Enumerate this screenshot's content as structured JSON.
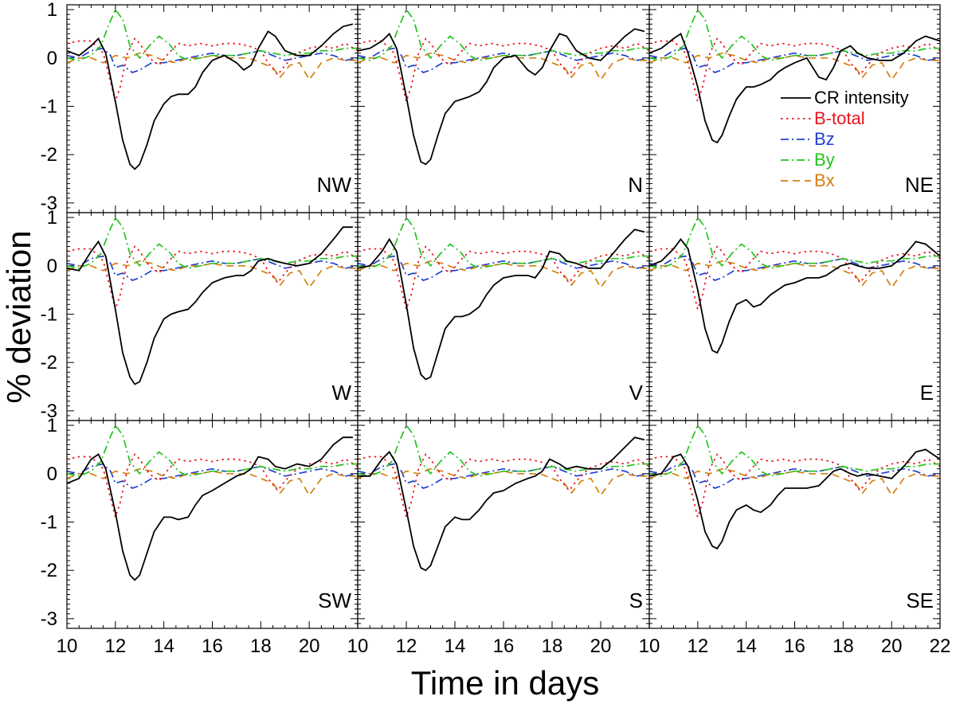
{
  "chart_data": {
    "type": "line",
    "layout": "3x3 grid of panels with shared axes",
    "xlabel": "Time in days",
    "ylabel": "% deviation",
    "xlim": [
      10,
      22
    ],
    "ylim": [
      -3.2,
      1.1
    ],
    "xticks": [
      10,
      12,
      14,
      16,
      18,
      20,
      22
    ],
    "xtick_labels": [
      "10",
      "12",
      "14",
      "16",
      "18",
      "20",
      "22"
    ],
    "xtick_labels_edge_panels": [
      "10",
      "12",
      "14",
      "16",
      "18",
      "20"
    ],
    "yticks": [
      -3,
      -2,
      -1,
      0,
      1
    ],
    "grid": false,
    "legend_panel": "NE",
    "legend_position": "top-right",
    "legend": [
      {
        "key": "cr",
        "label": "CR intensity",
        "color": "#000000",
        "dash": "solid"
      },
      {
        "key": "bt",
        "label": "B-total",
        "color": "#e8141c",
        "dash": "dotted"
      },
      {
        "key": "bz",
        "label": "Bz",
        "color": "#1f3fd0",
        "dash": "dash-dot"
      },
      {
        "key": "by",
        "label": "By",
        "color": "#22c41c",
        "dash": "dash-dot"
      },
      {
        "key": "bx",
        "label": "Bx",
        "color": "#d47f10",
        "dash": "dashed"
      }
    ],
    "shared_series": {
      "bt": {
        "x": [
          10,
          10.5,
          11,
          11.5,
          11.8,
          12,
          12.2,
          12.5,
          12.8,
          13,
          13.4,
          13.8,
          14.2,
          14.6,
          15,
          15.5,
          16,
          16.5,
          17,
          17.5,
          18,
          18.3,
          18.7,
          19,
          19.5,
          20,
          20.5,
          21,
          21.5,
          22
        ],
        "y": [
          0.3,
          0.35,
          0.35,
          0.1,
          -0.5,
          -0.9,
          -0.6,
          0.1,
          0.4,
          0.3,
          0.0,
          -0.15,
          0.1,
          0.3,
          0.25,
          0.3,
          0.25,
          0.3,
          0.3,
          0.25,
          0.15,
          -0.1,
          -0.35,
          -0.15,
          0.1,
          0.2,
          0.25,
          0.2,
          0.3,
          0.15
        ]
      },
      "bz": {
        "x": [
          10,
          10.5,
          11,
          11.5,
          11.8,
          12,
          12.3,
          12.7,
          13,
          13.5,
          14,
          14.5,
          15,
          15.5,
          16,
          16.5,
          17,
          17.5,
          18,
          18.5,
          19,
          19.5,
          20,
          20.5,
          21,
          21.5,
          22
        ],
        "y": [
          0.05,
          0.0,
          0.15,
          0.2,
          0.05,
          -0.2,
          -0.15,
          -0.3,
          -0.25,
          -0.1,
          -0.1,
          -0.05,
          0.0,
          0.05,
          0.1,
          0.05,
          0.05,
          0.1,
          0.15,
          0.05,
          -0.05,
          0.0,
          0.05,
          0.1,
          0.05,
          -0.05,
          0.0
        ]
      },
      "by": {
        "x": [
          10,
          10.5,
          11,
          11.4,
          11.7,
          12,
          12.3,
          12.6,
          13,
          13.4,
          13.8,
          14.2,
          14.6,
          15,
          15.5,
          16,
          16.5,
          17,
          17.5,
          18,
          18.5,
          19,
          19.5,
          20,
          20.5,
          21,
          21.5,
          22
        ],
        "y": [
          0.0,
          -0.05,
          0.05,
          0.25,
          0.65,
          1.0,
          0.8,
          0.25,
          0.0,
          0.25,
          0.45,
          0.3,
          0.05,
          -0.05,
          0.0,
          0.05,
          0.05,
          0.05,
          0.1,
          0.15,
          0.1,
          0.05,
          0.1,
          0.1,
          0.15,
          0.15,
          0.2,
          0.2
        ]
      },
      "bx": {
        "x": [
          10,
          10.5,
          11,
          11.5,
          12,
          12.5,
          13,
          13.5,
          14,
          14.5,
          15,
          15.5,
          16,
          16.5,
          17,
          17.5,
          18,
          18.5,
          18.8,
          19.2,
          19.6,
          20,
          20.5,
          21,
          21.5,
          22
        ],
        "y": [
          -0.1,
          0.0,
          0.0,
          -0.1,
          0.05,
          0.0,
          0.1,
          0.05,
          -0.05,
          -0.1,
          0.0,
          0.0,
          0.05,
          0.0,
          0.0,
          0.0,
          -0.1,
          -0.2,
          -0.4,
          -0.15,
          -0.1,
          -0.45,
          -0.1,
          0.0,
          -0.05,
          -0.05
        ]
      }
    },
    "panels": [
      {
        "id": "NW",
        "cr": {
          "x": [
            10,
            10.5,
            11,
            11.3,
            11.6,
            12,
            12.3,
            12.6,
            12.8,
            13,
            13.3,
            13.6,
            14,
            14.3,
            14.6,
            15,
            15.3,
            15.6,
            16,
            16.5,
            17,
            17.3,
            17.6,
            17.9,
            18.3,
            18.6,
            19,
            19.5,
            20,
            20.5,
            21,
            21.4,
            21.8
          ],
          "y": [
            0.15,
            0.05,
            0.25,
            0.4,
            0.1,
            -0.9,
            -1.7,
            -2.2,
            -2.3,
            -2.2,
            -1.8,
            -1.3,
            -0.95,
            -0.8,
            -0.75,
            -0.75,
            -0.6,
            -0.3,
            -0.05,
            0.05,
            -0.1,
            -0.25,
            -0.15,
            0.2,
            0.55,
            0.45,
            0.15,
            0.05,
            0.05,
            0.25,
            0.5,
            0.65,
            0.7
          ]
        }
      },
      {
        "id": "N",
        "cr": {
          "x": [
            10,
            10.5,
            11,
            11.3,
            11.6,
            12,
            12.3,
            12.6,
            12.8,
            13,
            13.3,
            13.6,
            14,
            14.3,
            14.6,
            15,
            15.3,
            15.6,
            16,
            16.5,
            17,
            17.3,
            17.6,
            17.9,
            18.3,
            18.6,
            19,
            19.5,
            20,
            20.5,
            21,
            21.4,
            21.8
          ],
          "y": [
            0.15,
            0.2,
            0.35,
            0.5,
            0.2,
            -0.8,
            -1.6,
            -2.15,
            -2.2,
            -2.1,
            -1.6,
            -1.15,
            -0.9,
            -0.85,
            -0.8,
            -0.7,
            -0.5,
            -0.2,
            0.0,
            0.05,
            -0.25,
            -0.35,
            -0.2,
            0.15,
            0.5,
            0.45,
            0.15,
            0.0,
            -0.05,
            0.2,
            0.45,
            0.6,
            0.55
          ]
        }
      },
      {
        "id": "NE",
        "cr": {
          "x": [
            10,
            10.5,
            11,
            11.3,
            11.6,
            12,
            12.3,
            12.6,
            12.8,
            13,
            13.3,
            13.6,
            14,
            14.3,
            14.6,
            15,
            15.3,
            15.6,
            16,
            16.5,
            17,
            17.3,
            17.6,
            17.9,
            18.3,
            18.6,
            19,
            19.5,
            20,
            20.5,
            21,
            21.4,
            22
          ],
          "y": [
            0.1,
            0.2,
            0.4,
            0.5,
            0.1,
            -0.6,
            -1.3,
            -1.7,
            -1.75,
            -1.6,
            -1.2,
            -0.85,
            -0.6,
            -0.6,
            -0.55,
            -0.45,
            -0.3,
            -0.2,
            -0.1,
            0.0,
            -0.4,
            -0.45,
            -0.2,
            0.15,
            0.25,
            0.1,
            0.0,
            -0.05,
            -0.05,
            0.1,
            0.35,
            0.45,
            0.35
          ]
        }
      },
      {
        "id": "W",
        "cr": {
          "x": [
            10,
            10.5,
            11,
            11.3,
            11.6,
            12,
            12.3,
            12.6,
            12.8,
            13,
            13.3,
            13.6,
            14,
            14.3,
            14.6,
            15,
            15.3,
            15.6,
            16,
            16.5,
            17,
            17.3,
            17.6,
            17.9,
            18.3,
            18.6,
            19,
            19.5,
            20,
            20.5,
            21,
            21.4,
            21.8
          ],
          "y": [
            -0.05,
            -0.1,
            0.3,
            0.5,
            0.2,
            -0.9,
            -1.8,
            -2.3,
            -2.45,
            -2.4,
            -2.0,
            -1.5,
            -1.1,
            -1.0,
            -0.95,
            -0.9,
            -0.75,
            -0.55,
            -0.35,
            -0.25,
            -0.2,
            -0.2,
            -0.1,
            0.1,
            0.15,
            0.1,
            0.05,
            0.0,
            0.05,
            0.25,
            0.55,
            0.8,
            0.8
          ]
        }
      },
      {
        "id": "V",
        "cr": {
          "x": [
            10,
            10.5,
            11,
            11.3,
            11.6,
            12,
            12.3,
            12.6,
            12.8,
            13,
            13.3,
            13.6,
            14,
            14.3,
            14.6,
            15,
            15.3,
            15.6,
            16,
            16.5,
            17,
            17.3,
            17.6,
            17.9,
            18.3,
            18.6,
            19,
            19.5,
            20,
            20.5,
            21,
            21.4,
            21.8
          ],
          "y": [
            -0.05,
            0.0,
            0.3,
            0.55,
            0.3,
            -0.8,
            -1.7,
            -2.25,
            -2.35,
            -2.3,
            -1.8,
            -1.3,
            -1.05,
            -1.05,
            -1.0,
            -0.85,
            -0.6,
            -0.4,
            -0.25,
            -0.2,
            -0.2,
            -0.25,
            -0.05,
            0.3,
            0.25,
            0.1,
            0.05,
            -0.05,
            -0.05,
            0.25,
            0.55,
            0.75,
            0.7
          ]
        }
      },
      {
        "id": "E",
        "cr": {
          "x": [
            10,
            10.5,
            11,
            11.3,
            11.6,
            12,
            12.3,
            12.6,
            12.8,
            13,
            13.3,
            13.6,
            14,
            14.3,
            14.6,
            15,
            15.3,
            15.6,
            16,
            16.5,
            17,
            17.3,
            17.6,
            17.9,
            18.3,
            18.6,
            19,
            19.5,
            20,
            20.5,
            21,
            21.4,
            22
          ],
          "y": [
            0.0,
            0.1,
            0.35,
            0.55,
            0.35,
            -0.5,
            -1.3,
            -1.75,
            -1.8,
            -1.6,
            -1.15,
            -0.8,
            -0.7,
            -0.85,
            -0.8,
            -0.6,
            -0.5,
            -0.4,
            -0.35,
            -0.25,
            -0.25,
            -0.2,
            -0.1,
            0.0,
            0.05,
            0.0,
            -0.05,
            -0.05,
            0.0,
            0.2,
            0.5,
            0.45,
            0.2
          ]
        }
      },
      {
        "id": "SW",
        "cr": {
          "x": [
            10,
            10.5,
            11,
            11.3,
            11.6,
            12,
            12.3,
            12.6,
            12.8,
            13,
            13.3,
            13.6,
            14,
            14.3,
            14.6,
            15,
            15.3,
            15.6,
            16,
            16.5,
            17,
            17.3,
            17.6,
            17.9,
            18.3,
            18.6,
            19,
            19.5,
            20,
            20.5,
            21,
            21.4,
            21.8
          ],
          "y": [
            -0.2,
            -0.1,
            0.3,
            0.4,
            0.1,
            -0.8,
            -1.6,
            -2.1,
            -2.2,
            -2.1,
            -1.65,
            -1.2,
            -0.9,
            -0.9,
            -0.95,
            -0.9,
            -0.65,
            -0.45,
            -0.35,
            -0.2,
            -0.05,
            0.0,
            0.1,
            0.35,
            0.3,
            0.15,
            0.1,
            0.2,
            0.15,
            0.3,
            0.6,
            0.75,
            0.75
          ]
        }
      },
      {
        "id": "S",
        "cr": {
          "x": [
            10,
            10.5,
            11,
            11.3,
            11.6,
            12,
            12.3,
            12.6,
            12.8,
            13,
            13.3,
            13.6,
            14,
            14.3,
            14.6,
            15,
            15.3,
            15.6,
            16,
            16.5,
            17,
            17.3,
            17.6,
            17.9,
            18.3,
            18.6,
            19,
            19.5,
            20,
            20.5,
            21,
            21.4,
            21.8
          ],
          "y": [
            -0.05,
            -0.05,
            0.3,
            0.45,
            0.2,
            -0.75,
            -1.5,
            -1.95,
            -2.0,
            -1.9,
            -1.5,
            -1.1,
            -0.9,
            -0.95,
            -0.95,
            -0.75,
            -0.55,
            -0.4,
            -0.35,
            -0.2,
            -0.1,
            -0.05,
            0.05,
            0.3,
            0.2,
            0.1,
            0.15,
            0.1,
            0.1,
            0.3,
            0.55,
            0.75,
            0.7
          ]
        }
      },
      {
        "id": "SE",
        "cr": {
          "x": [
            10,
            10.5,
            11,
            11.3,
            11.6,
            12,
            12.3,
            12.6,
            12.8,
            13,
            13.3,
            13.6,
            14,
            14.3,
            14.6,
            15,
            15.3,
            15.6,
            16,
            16.5,
            17,
            17.3,
            17.6,
            17.9,
            18.3,
            18.6,
            19,
            19.5,
            20,
            20.5,
            21,
            21.4,
            22
          ],
          "y": [
            -0.05,
            0.0,
            0.35,
            0.4,
            0.15,
            -0.55,
            -1.2,
            -1.5,
            -1.55,
            -1.4,
            -1.0,
            -0.75,
            -0.65,
            -0.75,
            -0.8,
            -0.65,
            -0.45,
            -0.3,
            -0.3,
            -0.3,
            -0.25,
            -0.1,
            0.05,
            0.1,
            0.0,
            -0.05,
            0.0,
            -0.05,
            -0.1,
            0.15,
            0.45,
            0.5,
            0.3
          ]
        }
      }
    ]
  }
}
